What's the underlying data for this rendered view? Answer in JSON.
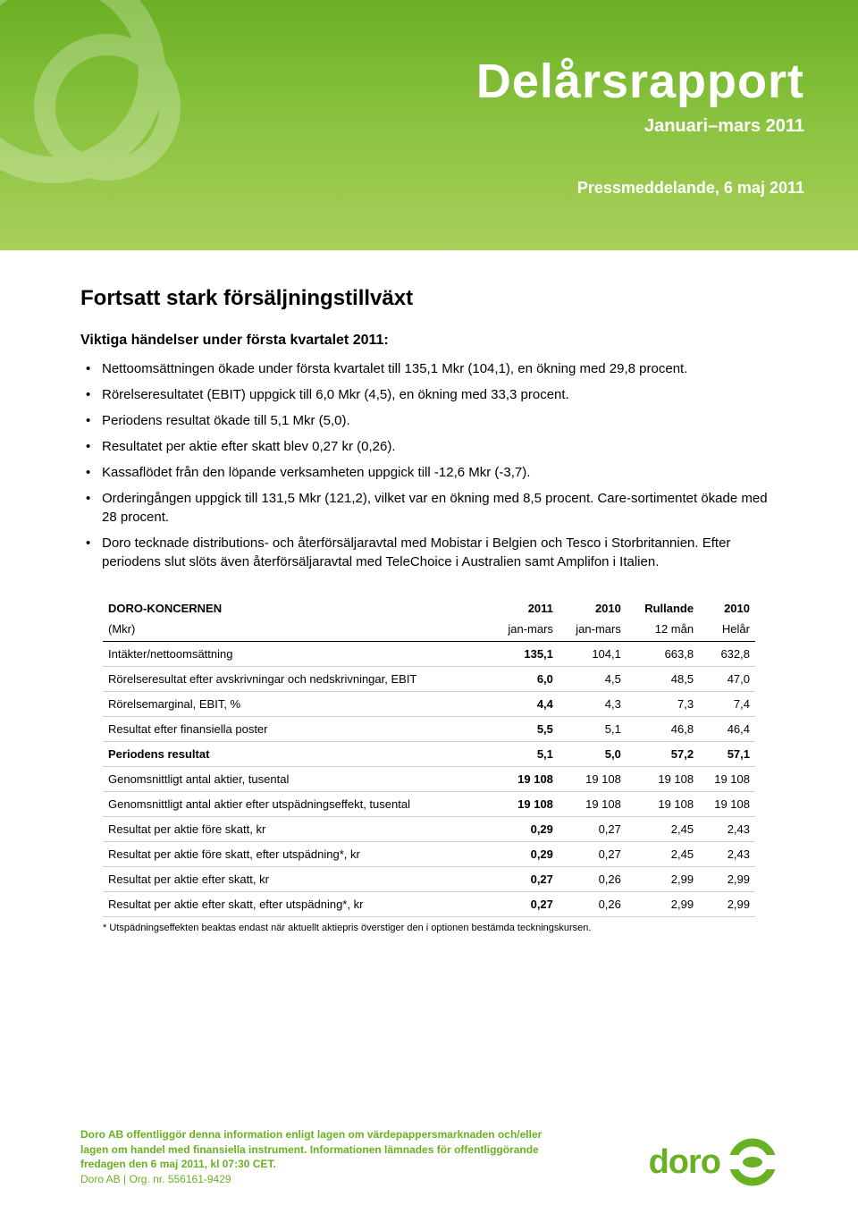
{
  "header": {
    "title": "Delårsrapport",
    "subtitle": "Januari–mars 2011",
    "press": "Pressmeddelande, 6 maj 2011",
    "bg_gradient": [
      "#6ab023",
      "#8bc340",
      "#a8d05a"
    ],
    "title_color": "#ffffff"
  },
  "main_heading": "Fortsatt stark försäljningstillväxt",
  "sub_heading": "Viktiga händelser under första kvartalet 2011:",
  "bullets": [
    "Nettoomsättningen ökade under första kvartalet till 135,1 Mkr (104,1), en ökning med 29,8 procent.",
    "Rörelseresultatet (EBIT) uppgick till 6,0 Mkr (4,5), en ökning med 33,3 procent.",
    "Periodens resultat ökade till 5,1 Mkr (5,0).",
    "Resultatet per aktie efter skatt blev 0,27 kr (0,26).",
    "Kassaflödet från den löpande verksamheten uppgick till -12,6 Mkr (-3,7).",
    "Orderingången uppgick till 131,5 Mkr (121,2), vilket var en ökning med 8,5 procent. Care-sortimentet ökade med 28 procent.",
    "Doro tecknade distributions- och återförsäljaravtal med Mobistar i Belgien och Tesco i Storbritannien. Efter periodens slut slöts även återförsäljaravtal med TeleChoice i Australien samt Amplifon i Italien."
  ],
  "table": {
    "header_label": "DORO-KONCERNEN",
    "header_sublabel": "(Mkr)",
    "col_headers_top": [
      "2011",
      "2010",
      "Rullande",
      "2010"
    ],
    "col_headers_bottom": [
      "jan-mars",
      "jan-mars",
      "12 mån",
      "Helår"
    ],
    "rows": [
      {
        "label": "Intäkter/nettoomsättning",
        "values": [
          "135,1",
          "104,1",
          "663,8",
          "632,8"
        ],
        "bold": false
      },
      {
        "label": "Rörelseresultat efter avskrivningar och nedskrivningar, EBIT",
        "values": [
          "6,0",
          "4,5",
          "48,5",
          "47,0"
        ],
        "bold": false
      },
      {
        "label": "Rörelsemarginal, EBIT, %",
        "values": [
          "4,4",
          "4,3",
          "7,3",
          "7,4"
        ],
        "bold": false
      },
      {
        "label": "Resultat efter finansiella poster",
        "values": [
          "5,5",
          "5,1",
          "46,8",
          "46,4"
        ],
        "bold": false
      },
      {
        "label": "Periodens resultat",
        "values": [
          "5,1",
          "5,0",
          "57,2",
          "57,1"
        ],
        "bold": true
      },
      {
        "label": "Genomsnittligt antal aktier, tusental",
        "values": [
          "19 108",
          "19 108",
          "19 108",
          "19 108"
        ],
        "bold": false
      },
      {
        "label": "Genomsnittligt antal aktier efter utspädningseffekt, tusental",
        "values": [
          "19 108",
          "19 108",
          "19 108",
          "19 108"
        ],
        "bold": false
      },
      {
        "label": "Resultat per aktie före skatt, kr",
        "values": [
          "0,29",
          "0,27",
          "2,45",
          "2,43"
        ],
        "bold": false
      },
      {
        "label": "Resultat per aktie före skatt, efter utspädning*, kr",
        "values": [
          "0,29",
          "0,27",
          "2,45",
          "2,43"
        ],
        "bold": false
      },
      {
        "label": "Resultat per aktie efter skatt, kr",
        "values": [
          "0,27",
          "0,26",
          "2,99",
          "2,99"
        ],
        "bold": false
      },
      {
        "label": "Resultat per aktie efter skatt, efter utspädning*, kr",
        "values": [
          "0,27",
          "0,26",
          "2,99",
          "2,99"
        ],
        "bold": false
      }
    ],
    "footnote": "* Utspädningseffekten beaktas endast när aktuellt aktiepris överstiger den i optionen bestämda teckningskursen.",
    "col_2011_bold": true,
    "border_color": "#cccccc"
  },
  "footer": {
    "line1": "Doro AB offentliggör denna information enligt lagen om värdepappersmarknaden och/eller lagen om handel med finansiella instrument. Informationen lämnades för offentliggörande fredagen den 6 maj 2011, kl 07:30 CET.",
    "line2": "Doro AB | Org. nr. 556161-9429",
    "accent_color": "#6ab023"
  },
  "logo": {
    "text": "doro",
    "color": "#6ab023"
  }
}
